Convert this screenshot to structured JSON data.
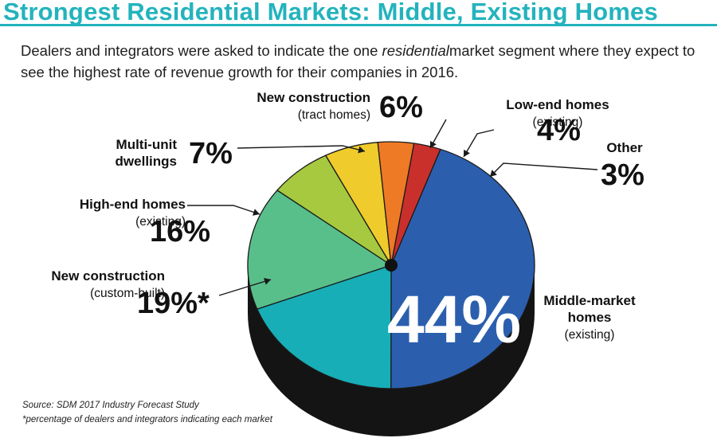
{
  "title": "Strongest Residential Markets: Middle, Existing Homes",
  "subtitle": {
    "before": "Dealers and integrators were asked to indicate the one ",
    "emphasis": "residential",
    "after": "market segment where they expect to see the highest rate of revenue growth for their companies in 2016."
  },
  "chart_data": {
    "type": "pie",
    "unit": "%",
    "slices": [
      {
        "id": "middle",
        "name": "Middle-market homes",
        "note": "(existing)",
        "value": 44,
        "label": "44%",
        "color": "#2b5fae"
      },
      {
        "id": "custom",
        "name": "New construction",
        "note": "(custom-built)",
        "value": 19,
        "label": "19%*",
        "color": "#17aeb7"
      },
      {
        "id": "highend",
        "name": "High-end homes",
        "note": "(existing)",
        "value": 16,
        "label": "16%",
        "color": "#58bf8b"
      },
      {
        "id": "multiunit",
        "name": "Multi-unit dwellings",
        "note": "",
        "value": 7,
        "label": "7%",
        "color": "#a6c93f"
      },
      {
        "id": "tract",
        "name": "New construction",
        "note": "(tract homes)",
        "value": 6,
        "label": "6%",
        "color": "#efcc2b"
      },
      {
        "id": "lowend",
        "name": "Low-end homes",
        "note": "(existing)",
        "value": 4,
        "label": "4%",
        "color": "#ef7a25"
      },
      {
        "id": "other",
        "name": "Other",
        "note": "",
        "value": 3,
        "label": "3%",
        "color": "#c9302c"
      }
    ],
    "label_lines": {
      "middle": [
        "Middle-market",
        "homes",
        "(existing)"
      ],
      "custom": [
        "New construction",
        "(custom-built)"
      ],
      "highend": [
        "High-end homes",
        "(existing)"
      ],
      "multiunit": [
        "Multi-unit",
        "dwellings"
      ],
      "tract": [
        "New construction",
        "(tract homes)"
      ],
      "lowend": [
        "Low-end homes",
        "(existing)"
      ],
      "other": [
        "Other"
      ]
    }
  },
  "source": "Source: SDM 2017 Industry Forecast Study",
  "footnote": "*percentage of dealers and integrators indicating each market"
}
